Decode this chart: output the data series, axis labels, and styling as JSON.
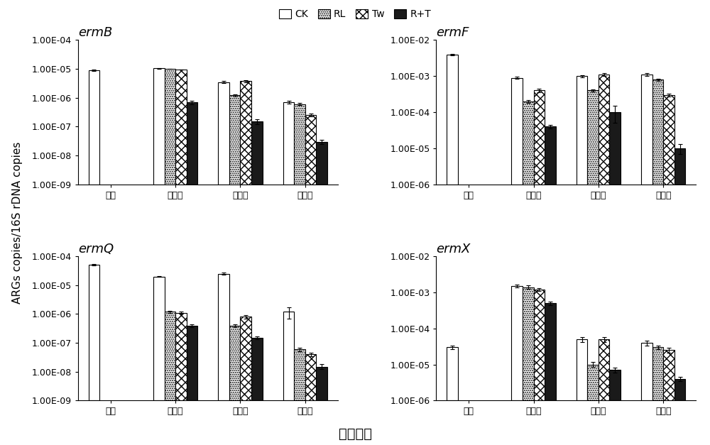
{
  "subplots": [
    {
      "title": "ermB",
      "ylim_log": [
        -9,
        -4
      ],
      "yticks": [
        -9,
        -8,
        -7,
        -6,
        -5,
        -4
      ],
      "groups": [
        "初始",
        "高温期",
        "降温期",
        "腐熟期"
      ],
      "CK": [
        9e-06,
        1.05e-05,
        3.5e-06,
        7e-07
      ],
      "RL": [
        null,
        1e-05,
        1.2e-06,
        6e-07
      ],
      "Tw": [
        null,
        9.5e-06,
        3.8e-06,
        2.5e-07
      ],
      "RT": [
        null,
        7e-07,
        1.5e-07,
        3e-08
      ],
      "CK_err": [
        3e-07,
        2e-07,
        3e-07,
        8e-08
      ],
      "RL_err": [
        null,
        2e-07,
        1e-07,
        5e-08
      ],
      "Tw_err": [
        null,
        2e-07,
        3e-07,
        3e-08
      ],
      "RT_err": [
        null,
        1e-07,
        3e-08,
        5e-09
      ]
    },
    {
      "title": "ermF",
      "ylim_log": [
        -6,
        -2
      ],
      "yticks": [
        -6,
        -5,
        -4,
        -3,
        -2
      ],
      "groups": [
        "初始",
        "高温期",
        "降温期",
        "腐熟期"
      ],
      "CK": [
        0.004,
        0.0009,
        0.001,
        0.0011
      ],
      "RL": [
        null,
        0.0002,
        0.0004,
        0.0008
      ],
      "Tw": [
        null,
        0.0004,
        0.0011,
        0.0003
      ],
      "RT": [
        null,
        4e-05,
        0.0001,
        1e-05
      ],
      "CK_err": [
        0.0002,
        5e-05,
        8e-05,
        0.0001
      ],
      "RL_err": [
        null,
        2e-05,
        3e-05,
        5e-05
      ],
      "Tw_err": [
        null,
        5e-05,
        0.0001,
        3e-05
      ],
      "RT_err": [
        null,
        5e-06,
        5e-05,
        3e-06
      ]
    },
    {
      "title": "ermQ",
      "ylim_log": [
        -9,
        -4
      ],
      "yticks": [
        -9,
        -8,
        -7,
        -6,
        -5,
        -4
      ],
      "groups": [
        "初始",
        "高温期",
        "降温期",
        "腐熟期"
      ],
      "CK": [
        5e-05,
        2e-05,
        2.5e-05,
        1.2e-06
      ],
      "RL": [
        null,
        1.2e-06,
        4e-07,
        6e-08
      ],
      "Tw": [
        null,
        1.1e-06,
        8e-07,
        4e-08
      ],
      "RT": [
        null,
        4e-07,
        1.5e-07,
        1.5e-08
      ],
      "CK_err": [
        3e-06,
        1e-06,
        2e-06,
        5e-07
      ],
      "RL_err": [
        null,
        1e-07,
        5e-08,
        8e-09
      ],
      "Tw_err": [
        null,
        1e-07,
        1e-07,
        5e-09
      ],
      "RT_err": [
        null,
        5e-08,
        2e-08,
        3e-09
      ]
    },
    {
      "title": "ermX",
      "ylim_log": [
        -6,
        -2
      ],
      "yticks": [
        -6,
        -5,
        -4,
        -3,
        -2
      ],
      "groups": [
        "初始",
        "高温期",
        "降温期",
        "腐熟期"
      ],
      "CK": [
        3e-05,
        0.0015,
        5e-05,
        4e-05
      ],
      "RL": [
        null,
        0.0014,
        1e-05,
        3e-05
      ],
      "Tw": [
        null,
        0.0012,
        5e-05,
        2.5e-05
      ],
      "RT": [
        null,
        0.0005,
        7e-06,
        4e-06
      ],
      "CK_err": [
        4e-06,
        0.00015,
        8e-06,
        6e-06
      ],
      "RL_err": [
        null,
        0.00015,
        1.5e-06,
        4e-06
      ],
      "Tw_err": [
        null,
        0.0001,
        8e-06,
        4e-06
      ],
      "RT_err": [
        null,
        6e-05,
        1e-06,
        5e-07
      ]
    }
  ],
  "legend_labels": [
    "CK",
    "RL",
    "Tw",
    "R+T"
  ],
  "bar_width": 0.17,
  "xlabel": "堆肥时期",
  "ylabel": "ARGs copies/16S rDNA copies",
  "background_color": "#ffffff",
  "title_font_size": 13,
  "tick_font_size": 9,
  "label_font_size": 11
}
